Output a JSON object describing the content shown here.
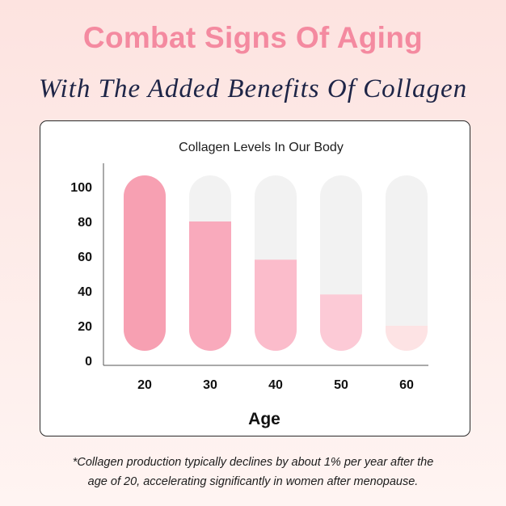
{
  "headline": "Combat Signs Of Aging",
  "subheadline": "With The Added Benefits Of Collagen",
  "footnote_line1": "*Collagen production typically declines by about 1% per year after the",
  "footnote_line2": "age of 20, accelerating significantly in women after menopause.",
  "colors": {
    "headline": "#f48aa0",
    "subheadline": "#1e2547",
    "bar_background": "#f2f2f2",
    "series": [
      "#f7a0b2",
      "#f9aabc",
      "#fbbccb",
      "#fccad6",
      "#fde3e4"
    ]
  },
  "chart_data": {
    "type": "bar",
    "title": "Collagen Levels In Our Body",
    "xlabel": "Age",
    "ylabel": "",
    "categories": [
      "20",
      "30",
      "40",
      "50",
      "60"
    ],
    "values": [
      100,
      80,
      58,
      38,
      20
    ],
    "ylim": [
      0,
      100
    ],
    "yticks": [
      0,
      20,
      40,
      60,
      80,
      100
    ],
    "grid": false,
    "legend": "none"
  }
}
